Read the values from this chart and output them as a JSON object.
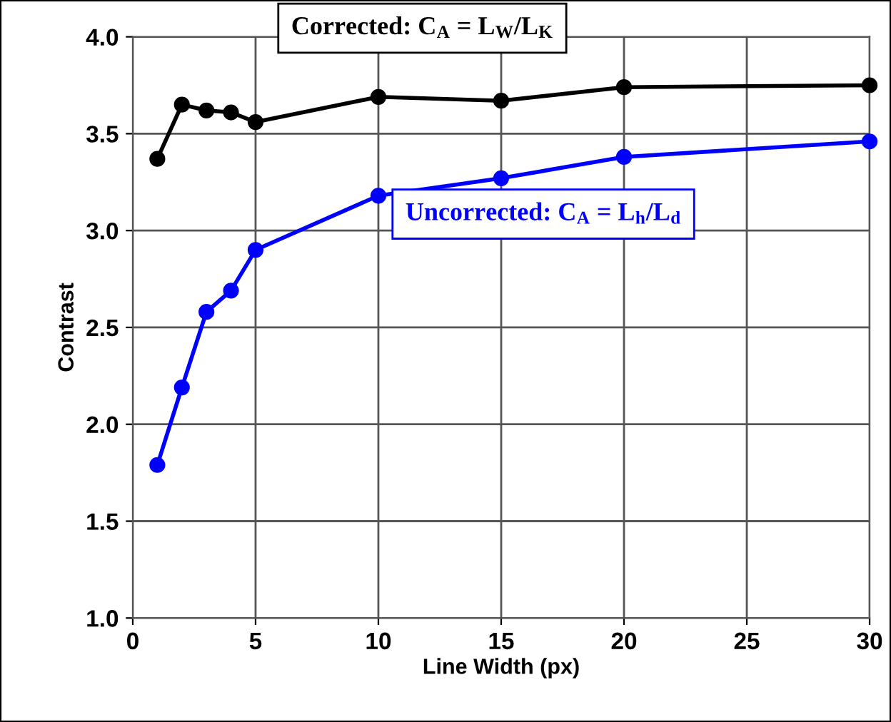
{
  "chart_data": {
    "type": "line",
    "xlabel": "Line Width (px)",
    "ylabel": "Contrast",
    "x": [
      1,
      2,
      3,
      4,
      5,
      10,
      15,
      20,
      30
    ],
    "series": [
      {
        "name": "Corrected: C$_{A}$ = L$_{W}$/L$_{K}$",
        "color": "#000000",
        "values": [
          3.37,
          3.65,
          3.62,
          3.61,
          3.56,
          3.69,
          3.67,
          3.74,
          3.75
        ]
      },
      {
        "name": "Uncorrected: C$_{A}$ = L$_{h}$/L$_{d}$",
        "color": "#0000ff",
        "values": [
          1.79,
          2.19,
          2.58,
          2.69,
          2.9,
          3.18,
          3.27,
          3.38,
          3.46
        ]
      }
    ],
    "xlim": [
      0,
      30
    ],
    "xticks": [
      0,
      5,
      10,
      15,
      20,
      25,
      30
    ],
    "ylim": [
      1.0,
      4.0
    ],
    "yticks": [
      {
        "value": 1.0,
        "label": "1.0"
      },
      {
        "value": 1.5,
        "label": "1.5"
      },
      {
        "value": 2.0,
        "label": "2.0"
      },
      {
        "value": 2.5,
        "label": "2.5"
      },
      {
        "value": 3.0,
        "label": "3.0"
      },
      {
        "value": 3.5,
        "label": "3.5"
      },
      {
        "value": 4.0,
        "label": "4.0"
      }
    ],
    "grid": true,
    "legend": false,
    "marker": "circle",
    "line_style": "solid"
  }
}
